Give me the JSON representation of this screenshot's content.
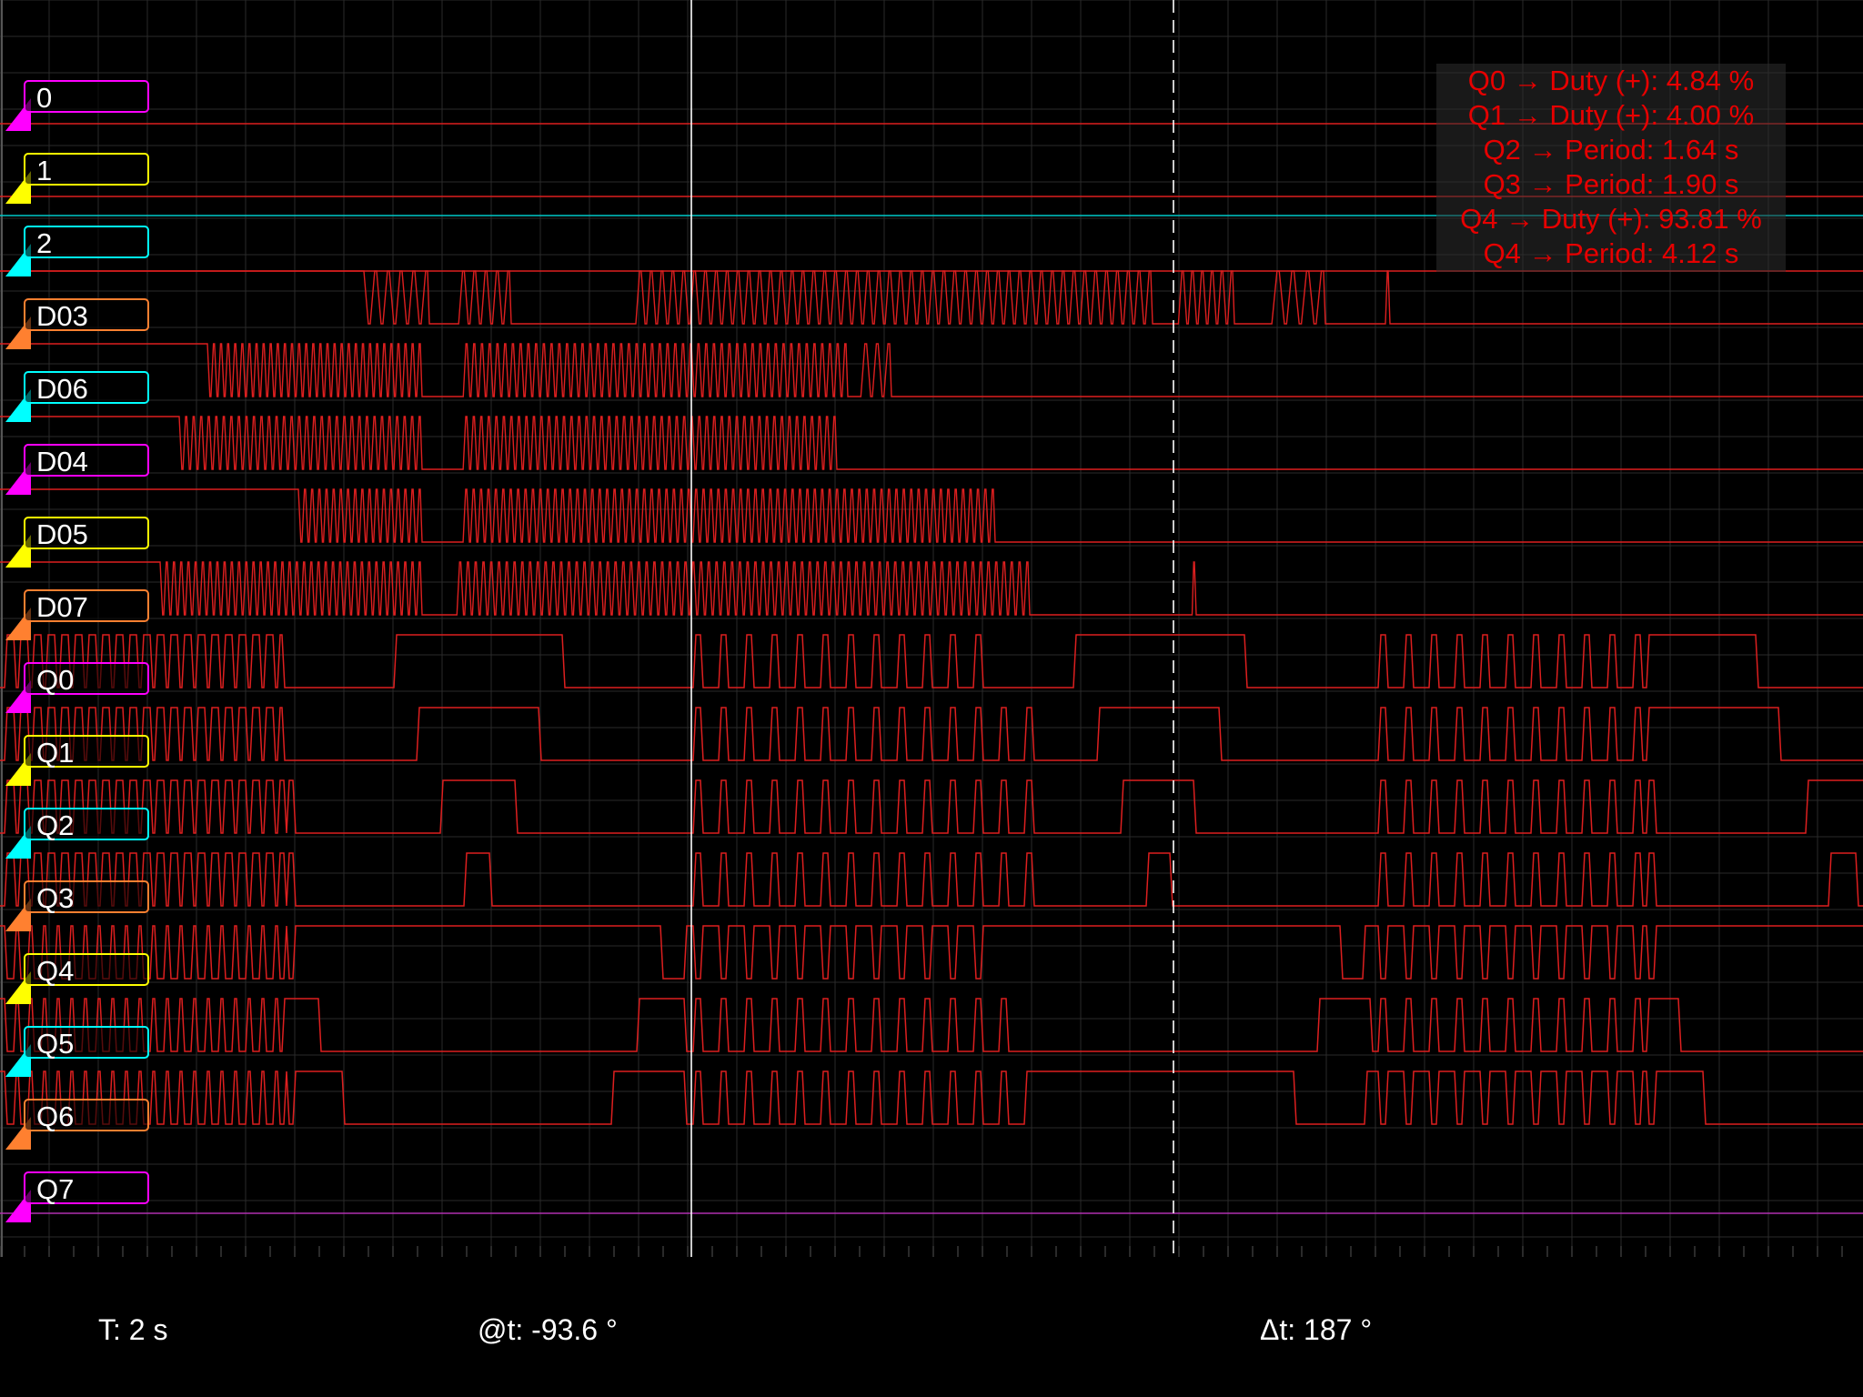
{
  "channels": [
    {
      "label": "0",
      "color": "#ff00ff",
      "kind": "flat",
      "level": "high"
    },
    {
      "label": "1",
      "color": "#ffff00",
      "kind": "flat",
      "level": "high"
    },
    {
      "label": "2",
      "color": "#00ffff",
      "kind": "flat",
      "level": "low"
    },
    {
      "label": "D03",
      "color": "#ff8030",
      "kind": "pattern",
      "start": "high",
      "segments": [
        [
          400,
          470,
          5
        ],
        [
          498,
          560,
          5
        ],
        [
          693,
          1265,
          48
        ],
        [
          1290,
          1355,
          6
        ],
        [
          1390,
          1455,
          4
        ],
        [
          1520,
          1526,
          1
        ]
      ]
    },
    {
      "label": "D06",
      "color": "#00ffff",
      "kind": "pattern",
      "start": "high",
      "segments": [
        [
          228,
          462,
          30
        ],
        [
          505,
          930,
          50
        ],
        [
          940,
          978,
          3
        ]
      ]
    },
    {
      "label": "D04",
      "color": "#ff00ff",
      "kind": "pattern",
      "start": "high",
      "segments": [
        [
          197,
          462,
          32
        ],
        [
          505,
          918,
          50
        ]
      ]
    },
    {
      "label": "D05",
      "color": "#ffff00",
      "kind": "pattern",
      "start": "high",
      "segments": [
        [
          328,
          462,
          17
        ],
        [
          505,
          1092,
          72
        ]
      ]
    },
    {
      "label": "D07",
      "color": "#ff8030",
      "kind": "pattern",
      "start": "high",
      "segments": [
        [
          176,
          462,
          36
        ],
        [
          498,
          1130,
          74
        ],
        [
          1308,
          1313,
          1
        ]
      ]
    },
    {
      "label": "Q0",
      "color": "#ff00ff",
      "kind": "edges",
      "start": "low",
      "edges": [
        5,
        15,
        20,
        30,
        35,
        45,
        50,
        60,
        65,
        75,
        80,
        90,
        95,
        105,
        110,
        120,
        125,
        135,
        140,
        150,
        155,
        165,
        170,
        180,
        185,
        195,
        200,
        210,
        215,
        225,
        230,
        240,
        245,
        255,
        260,
        270,
        275,
        285,
        290,
        300,
        305,
        310,
        433,
        618,
        762,
        770,
        790,
        798,
        818,
        826,
        846,
        854,
        874,
        882,
        902,
        910,
        930,
        938,
        958,
        966,
        986,
        994,
        1014,
        1022,
        1042,
        1050,
        1070,
        1078,
        1180,
        1368,
        1515,
        1523,
        1543,
        1551,
        1571,
        1579,
        1599,
        1607,
        1627,
        1635,
        1655,
        1663,
        1683,
        1691,
        1711,
        1719,
        1739,
        1747,
        1767,
        1775,
        1795,
        1803,
        1810,
        1930
      ]
    },
    {
      "label": "Q1",
      "color": "#ffff00",
      "kind": "edges",
      "start": "low",
      "edges": [
        5,
        15,
        20,
        30,
        35,
        45,
        50,
        60,
        65,
        75,
        80,
        90,
        95,
        105,
        110,
        120,
        125,
        135,
        140,
        150,
        155,
        165,
        170,
        180,
        185,
        195,
        200,
        210,
        215,
        225,
        230,
        240,
        245,
        255,
        260,
        270,
        275,
        285,
        290,
        300,
        305,
        310,
        458,
        592,
        762,
        770,
        790,
        798,
        818,
        826,
        846,
        854,
        874,
        882,
        902,
        910,
        930,
        938,
        958,
        966,
        986,
        994,
        1014,
        1022,
        1042,
        1050,
        1070,
        1078,
        1098,
        1106,
        1126,
        1134,
        1206,
        1340,
        1515,
        1523,
        1543,
        1551,
        1571,
        1579,
        1599,
        1607,
        1627,
        1635,
        1655,
        1663,
        1683,
        1691,
        1711,
        1719,
        1739,
        1747,
        1767,
        1775,
        1795,
        1803,
        1810,
        1955
      ]
    },
    {
      "label": "Q2",
      "color": "#00ffff",
      "kind": "edges",
      "start": "low",
      "edges": [
        5,
        15,
        20,
        30,
        35,
        45,
        50,
        60,
        65,
        75,
        80,
        90,
        95,
        105,
        110,
        120,
        125,
        135,
        140,
        150,
        155,
        165,
        170,
        180,
        185,
        195,
        200,
        210,
        215,
        225,
        230,
        240,
        245,
        255,
        260,
        270,
        275,
        285,
        290,
        300,
        305,
        312,
        315,
        322,
        484,
        566,
        762,
        770,
        790,
        798,
        818,
        826,
        846,
        854,
        874,
        882,
        902,
        910,
        930,
        938,
        958,
        966,
        986,
        994,
        1014,
        1022,
        1042,
        1050,
        1070,
        1078,
        1098,
        1106,
        1126,
        1134,
        1232,
        1312,
        1515,
        1523,
        1543,
        1551,
        1571,
        1579,
        1599,
        1607,
        1627,
        1635,
        1655,
        1663,
        1683,
        1691,
        1711,
        1719,
        1739,
        1747,
        1767,
        1775,
        1795,
        1803,
        1810,
        1818,
        1985
      ]
    },
    {
      "label": "Q3",
      "color": "#ff8030",
      "kind": "edges",
      "start": "low",
      "edges": [
        5,
        15,
        20,
        30,
        35,
        45,
        50,
        60,
        65,
        75,
        80,
        90,
        95,
        105,
        110,
        120,
        125,
        135,
        140,
        150,
        155,
        165,
        170,
        180,
        185,
        195,
        200,
        210,
        215,
        225,
        230,
        240,
        245,
        255,
        260,
        270,
        275,
        285,
        290,
        300,
        305,
        312,
        315,
        322,
        510,
        538,
        762,
        770,
        790,
        798,
        818,
        826,
        846,
        854,
        874,
        882,
        902,
        910,
        930,
        938,
        958,
        966,
        986,
        994,
        1014,
        1022,
        1042,
        1050,
        1070,
        1078,
        1098,
        1106,
        1126,
        1134,
        1260,
        1286,
        1515,
        1523,
        1543,
        1551,
        1571,
        1579,
        1599,
        1607,
        1627,
        1635,
        1655,
        1663,
        1683,
        1691,
        1711,
        1719,
        1739,
        1747,
        1767,
        1775,
        1795,
        1803,
        1810,
        1818,
        2010,
        2040
      ]
    },
    {
      "label": "Q4",
      "color": "#ffff00",
      "kind": "edges",
      "start": "high",
      "edges": [
        5,
        15,
        20,
        30,
        35,
        45,
        50,
        60,
        65,
        75,
        80,
        90,
        95,
        105,
        110,
        120,
        125,
        135,
        140,
        150,
        155,
        165,
        170,
        180,
        185,
        195,
        200,
        210,
        215,
        225,
        230,
        240,
        245,
        255,
        260,
        270,
        275,
        285,
        290,
        300,
        305,
        312,
        315,
        322,
        726,
        752,
        762,
        770,
        790,
        798,
        818,
        826,
        846,
        854,
        874,
        882,
        902,
        910,
        930,
        938,
        958,
        966,
        986,
        994,
        1014,
        1022,
        1042,
        1050,
        1070,
        1078,
        1473,
        1498,
        1515,
        1523,
        1543,
        1551,
        1571,
        1579,
        1599,
        1607,
        1627,
        1635,
        1655,
        1663,
        1683,
        1691,
        1711,
        1719,
        1739,
        1747,
        1767,
        1775,
        1795,
        1803,
        1810,
        1818
      ]
    },
    {
      "label": "Q5",
      "color": "#00ffff",
      "kind": "edges",
      "start": "high",
      "edges": [
        5,
        15,
        20,
        30,
        35,
        45,
        50,
        60,
        65,
        75,
        80,
        90,
        95,
        105,
        110,
        120,
        125,
        135,
        140,
        150,
        155,
        165,
        170,
        180,
        185,
        195,
        200,
        210,
        215,
        225,
        230,
        240,
        245,
        255,
        260,
        270,
        275,
        285,
        290,
        300,
        305,
        310,
        350,
        700,
        752,
        762,
        770,
        790,
        798,
        818,
        826,
        846,
        854,
        874,
        882,
        902,
        910,
        930,
        938,
        958,
        966,
        986,
        994,
        1014,
        1022,
        1042,
        1050,
        1070,
        1078,
        1098,
        1106,
        1448,
        1506,
        1515,
        1523,
        1543,
        1551,
        1571,
        1579,
        1599,
        1607,
        1627,
        1635,
        1655,
        1663,
        1683,
        1691,
        1711,
        1719,
        1739,
        1747,
        1767,
        1775,
        1795,
        1803,
        1810,
        1845
      ]
    },
    {
      "label": "Q6",
      "color": "#ff8030",
      "kind": "edges",
      "start": "high",
      "edges": [
        5,
        15,
        20,
        30,
        35,
        45,
        50,
        60,
        65,
        75,
        80,
        90,
        95,
        105,
        110,
        120,
        125,
        135,
        140,
        150,
        155,
        165,
        170,
        180,
        185,
        195,
        200,
        210,
        215,
        225,
        230,
        240,
        245,
        255,
        260,
        270,
        275,
        285,
        290,
        300,
        305,
        312,
        315,
        322,
        376,
        672,
        752,
        762,
        770,
        790,
        798,
        818,
        826,
        846,
        854,
        874,
        882,
        902,
        910,
        930,
        938,
        958,
        966,
        986,
        994,
        1014,
        1022,
        1042,
        1050,
        1070,
        1078,
        1098,
        1106,
        1126,
        1422,
        1500,
        1515,
        1523,
        1543,
        1551,
        1571,
        1579,
        1599,
        1607,
        1627,
        1635,
        1655,
        1663,
        1683,
        1691,
        1711,
        1719,
        1739,
        1747,
        1767,
        1775,
        1795,
        1803,
        1810,
        1818,
        1872
      ]
    },
    {
      "label": "Q7",
      "color": "#ff00ff",
      "kind": "flat",
      "level": "low"
    }
  ],
  "measurements": [
    "Q0 → Duty (+): 4.84 %",
    "Q1 → Duty (+): 4.00 %",
    "Q2 → Period: 1.64 s",
    "Q3 → Period: 1.90 s",
    "Q4 → Duty (+): 93.81 %",
    "Q4 → Period: 4.12 s"
  ],
  "footer": {
    "timebase": "T: 2 s",
    "cursor_time": "@t: -93.6 °",
    "delta_time": "Δt: 187 °"
  },
  "colors": {
    "trace": "#dd1f1f",
    "grid": "#2a2a2a",
    "cursor": "#ffffff",
    "measurement_text": "#e60000",
    "cyan_marker": "#00c8c8",
    "q7_line": "#b030b0"
  }
}
